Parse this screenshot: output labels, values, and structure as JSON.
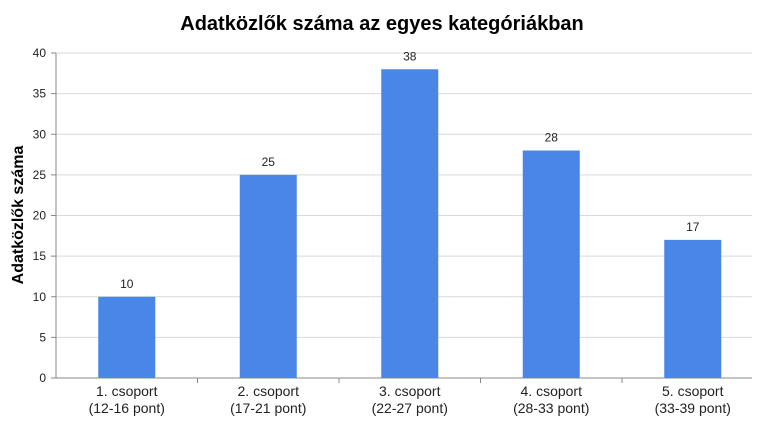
{
  "chart_data": {
    "type": "bar",
    "title": "Adatközlők száma az egyes kategóriákban",
    "y_label": "Adatközlők száma",
    "categories": [
      [
        "1. csoport",
        "(12-16 pont)"
      ],
      [
        "2. csoport",
        "(17-21 pont)"
      ],
      [
        "3. csoport",
        "(22-27 pont)"
      ],
      [
        "4. csoport",
        "(28-33 pont)"
      ],
      [
        "5. csoport",
        "(33-39 pont)"
      ]
    ],
    "values": [
      10,
      25,
      38,
      28,
      17
    ],
    "color": "#4a86e8",
    "ylim": [
      0,
      40
    ],
    "yticks": [
      0,
      5,
      10,
      15,
      20,
      25,
      30,
      35,
      40
    ],
    "grid": true
  }
}
